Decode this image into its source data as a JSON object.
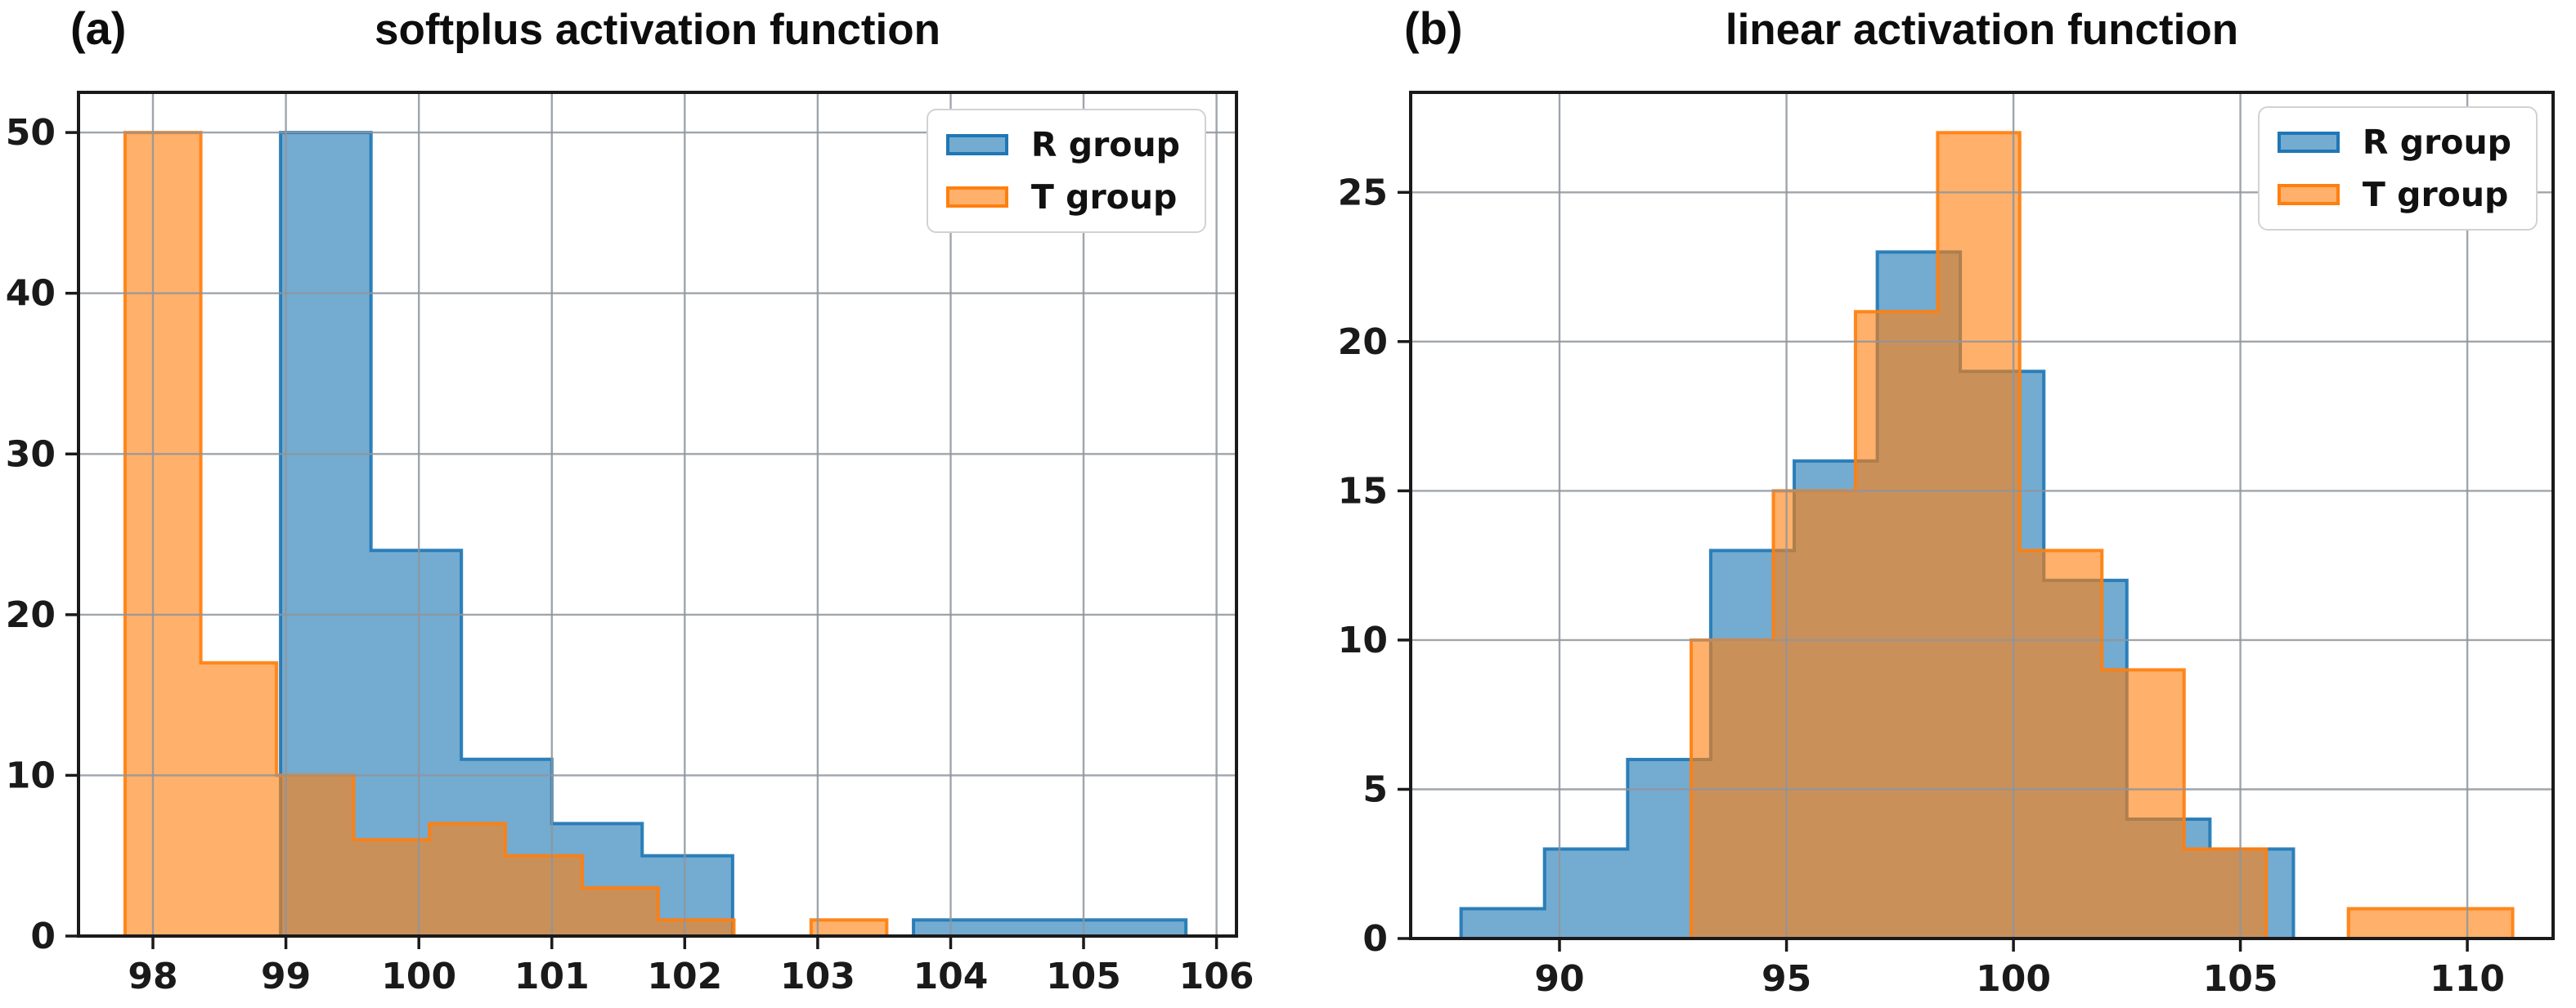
{
  "figure": {
    "background_color": "#ffffff",
    "grid_color": "#8e959c",
    "spine_color": "#1a1a1a"
  },
  "chart_data": [
    {
      "type": "histogram",
      "panel_label": "(a)",
      "title": "softplus activation function",
      "xlabel": "",
      "ylabel": "",
      "xlim": [
        97.44,
        106.15
      ],
      "ylim": [
        0,
        52.5
      ],
      "xticks": [
        98,
        99,
        100,
        101,
        102,
        103,
        104,
        105,
        106
      ],
      "yticks": [
        0,
        10,
        20,
        30,
        40,
        50
      ],
      "grid": true,
      "legend_position": "top-right",
      "series": [
        {
          "name": "R group",
          "color": "#1f77b4",
          "bin_edges": [
            98.96,
            99.64,
            100.32,
            101.0,
            101.68,
            102.36,
            103.04,
            103.72,
            104.41,
            105.09,
            105.77
          ],
          "counts": [
            50,
            24,
            11,
            7,
            5,
            0,
            0,
            1,
            1,
            1
          ]
        },
        {
          "name": "T group",
          "color": "#ff7f0e",
          "bin_edges": [
            97.79,
            98.36,
            98.93,
            99.51,
            100.08,
            100.65,
            101.23,
            101.8,
            102.37,
            102.95,
            103.52
          ],
          "counts": [
            50,
            17,
            10,
            6,
            7,
            5,
            3,
            1,
            0,
            1
          ]
        }
      ]
    },
    {
      "type": "histogram",
      "panel_label": "(b)",
      "title": "linear activation function",
      "xlabel": "",
      "ylabel": "",
      "xlim": [
        86.72,
        111.89
      ],
      "ylim": [
        0,
        28.35
      ],
      "xticks": [
        90,
        95,
        100,
        105,
        110
      ],
      "yticks": [
        0,
        5,
        10,
        15,
        20,
        25
      ],
      "grid": true,
      "legend_position": "top-right",
      "series": [
        {
          "name": "R group",
          "color": "#1f77b4",
          "bin_edges": [
            87.83,
            89.67,
            91.5,
            93.33,
            95.17,
            97.0,
            98.83,
            100.67,
            102.5,
            104.33,
            106.17
          ],
          "counts": [
            1,
            3,
            6,
            13,
            16,
            23,
            19,
            12,
            4,
            3
          ]
        },
        {
          "name": "T group",
          "color": "#ff7f0e",
          "bin_edges": [
            92.9,
            94.71,
            96.52,
            98.33,
            100.14,
            101.95,
            103.76,
            105.57,
            107.38,
            109.19,
            111.0
          ],
          "counts": [
            10,
            15,
            21,
            27,
            13,
            9,
            3,
            0,
            1,
            1
          ]
        }
      ]
    }
  ]
}
